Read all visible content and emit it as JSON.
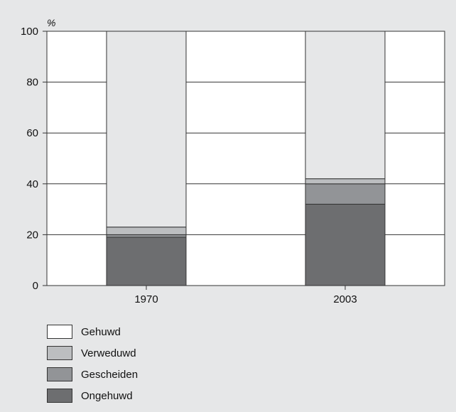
{
  "chart_data": {
    "type": "bar",
    "stacked": true,
    "title": "",
    "ylabel": "%",
    "xlabel": "",
    "ylim": [
      0,
      100
    ],
    "yticks": [
      0,
      20,
      40,
      60,
      80,
      100
    ],
    "grid": true,
    "legend_position": "bottom-left",
    "categories": [
      "1970",
      "2003"
    ],
    "series": [
      {
        "name": "Ongehuwd",
        "values": [
          19,
          32
        ],
        "color": "#6d6e70"
      },
      {
        "name": "Gescheiden",
        "values": [
          1,
          8
        ],
        "color": "#929497"
      },
      {
        "name": "Verweduwd",
        "values": [
          3,
          2
        ],
        "color": "#bcbec0"
      },
      {
        "name": "Gehuwd",
        "values": [
          77,
          58
        ],
        "color": "#e6e7e8"
      }
    ],
    "legend": [
      {
        "name": "Gehuwd",
        "color": "#ffffff"
      },
      {
        "name": "Verweduwd",
        "color": "#bcbec0"
      },
      {
        "name": "Gescheiden",
        "color": "#929497"
      },
      {
        "name": "Ongehuwd",
        "color": "#6d6e70"
      }
    ]
  }
}
